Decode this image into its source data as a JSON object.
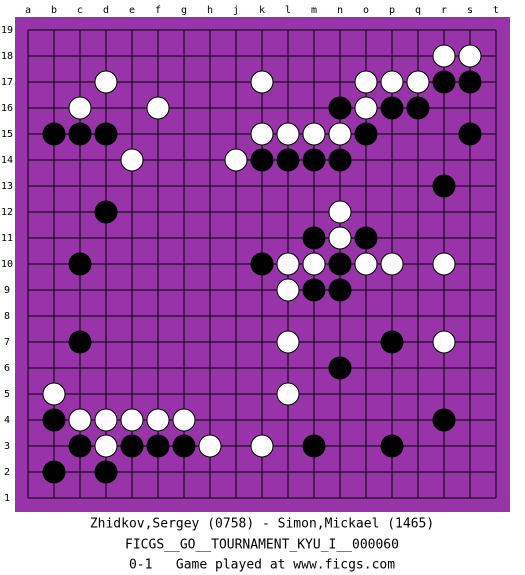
{
  "board": {
    "columns": [
      "a",
      "b",
      "c",
      "d",
      "e",
      "f",
      "g",
      "h",
      "j",
      "k",
      "l",
      "m",
      "n",
      "o",
      "p",
      "q",
      "r",
      "s",
      "t"
    ],
    "rows": [
      19,
      18,
      17,
      16,
      15,
      14,
      13,
      12,
      11,
      10,
      9,
      8,
      7,
      6,
      5,
      4,
      3,
      2,
      1
    ]
  },
  "stones": [
    {
      "color": "white",
      "col": "r",
      "row": 18
    },
    {
      "color": "white",
      "col": "s",
      "row": 18
    },
    {
      "color": "white",
      "col": "d",
      "row": 17
    },
    {
      "color": "white",
      "col": "k",
      "row": 17
    },
    {
      "color": "white",
      "col": "o",
      "row": 17
    },
    {
      "color": "white",
      "col": "p",
      "row": 17
    },
    {
      "color": "white",
      "col": "q",
      "row": 17
    },
    {
      "color": "black",
      "col": "r",
      "row": 17
    },
    {
      "color": "black",
      "col": "s",
      "row": 17
    },
    {
      "color": "white",
      "col": "c",
      "row": 16
    },
    {
      "color": "white",
      "col": "f",
      "row": 16
    },
    {
      "color": "black",
      "col": "n",
      "row": 16
    },
    {
      "color": "white",
      "col": "o",
      "row": 16
    },
    {
      "color": "black",
      "col": "p",
      "row": 16
    },
    {
      "color": "black",
      "col": "q",
      "row": 16
    },
    {
      "color": "black",
      "col": "b",
      "row": 15
    },
    {
      "color": "black",
      "col": "c",
      "row": 15
    },
    {
      "color": "black",
      "col": "d",
      "row": 15
    },
    {
      "color": "white",
      "col": "k",
      "row": 15
    },
    {
      "color": "white",
      "col": "l",
      "row": 15
    },
    {
      "color": "white",
      "col": "m",
      "row": 15
    },
    {
      "color": "white",
      "col": "n",
      "row": 15
    },
    {
      "color": "black",
      "col": "o",
      "row": 15
    },
    {
      "color": "black",
      "col": "s",
      "row": 15
    },
    {
      "color": "white",
      "col": "e",
      "row": 14
    },
    {
      "color": "white",
      "col": "j",
      "row": 14
    },
    {
      "color": "black",
      "col": "k",
      "row": 14
    },
    {
      "color": "black",
      "col": "l",
      "row": 14
    },
    {
      "color": "black",
      "col": "m",
      "row": 14
    },
    {
      "color": "black",
      "col": "n",
      "row": 14
    },
    {
      "color": "black",
      "col": "r",
      "row": 13
    },
    {
      "color": "black",
      "col": "d",
      "row": 12
    },
    {
      "color": "white",
      "col": "n",
      "row": 12
    },
    {
      "color": "black",
      "col": "m",
      "row": 11
    },
    {
      "color": "white",
      "col": "n",
      "row": 11
    },
    {
      "color": "black",
      "col": "o",
      "row": 11
    },
    {
      "color": "black",
      "col": "c",
      "row": 10
    },
    {
      "color": "black",
      "col": "k",
      "row": 10
    },
    {
      "color": "white",
      "col": "l",
      "row": 10
    },
    {
      "color": "white",
      "col": "m",
      "row": 10
    },
    {
      "color": "black",
      "col": "n",
      "row": 10
    },
    {
      "color": "white",
      "col": "o",
      "row": 10
    },
    {
      "color": "white",
      "col": "p",
      "row": 10
    },
    {
      "color": "white",
      "col": "r",
      "row": 10
    },
    {
      "color": "white",
      "col": "l",
      "row": 9
    },
    {
      "color": "black",
      "col": "m",
      "row": 9
    },
    {
      "color": "black",
      "col": "n",
      "row": 9
    },
    {
      "color": "black",
      "col": "c",
      "row": 7
    },
    {
      "color": "white",
      "col": "l",
      "row": 7
    },
    {
      "color": "black",
      "col": "p",
      "row": 7
    },
    {
      "color": "white",
      "col": "r",
      "row": 7
    },
    {
      "color": "black",
      "col": "n",
      "row": 6
    },
    {
      "color": "white",
      "col": "b",
      "row": 5
    },
    {
      "color": "white",
      "col": "l",
      "row": 5
    },
    {
      "color": "black",
      "col": "b",
      "row": 4
    },
    {
      "color": "white",
      "col": "c",
      "row": 4
    },
    {
      "color": "white",
      "col": "d",
      "row": 4
    },
    {
      "color": "white",
      "col": "e",
      "row": 4
    },
    {
      "color": "white",
      "col": "f",
      "row": 4
    },
    {
      "color": "white",
      "col": "g",
      "row": 4
    },
    {
      "color": "black",
      "col": "r",
      "row": 4
    },
    {
      "color": "black",
      "col": "c",
      "row": 3
    },
    {
      "color": "white",
      "col": "d",
      "row": 3
    },
    {
      "color": "black",
      "col": "e",
      "row": 3
    },
    {
      "color": "black",
      "col": "f",
      "row": 3
    },
    {
      "color": "black",
      "col": "g",
      "row": 3
    },
    {
      "color": "white",
      "col": "h",
      "row": 3
    },
    {
      "color": "white",
      "col": "k",
      "row": 3
    },
    {
      "color": "black",
      "col": "m",
      "row": 3
    },
    {
      "color": "black",
      "col": "p",
      "row": 3
    },
    {
      "color": "black",
      "col": "b",
      "row": 2
    },
    {
      "color": "black",
      "col": "d",
      "row": 2
    }
  ],
  "caption": {
    "players": "Zhidkov,Sergey (0758) - Simon,Mickael (1465)",
    "event": "FICGS__GO__TOURNAMENT_KYU_I__000060",
    "result": "0-1   Game played at www.ficgs.com"
  }
}
